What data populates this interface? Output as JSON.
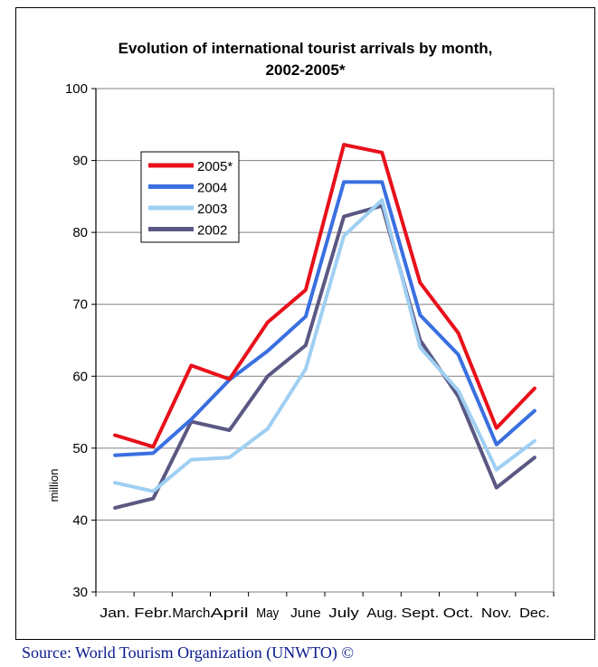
{
  "title_line1": "Evolution of international tourist arrivals by month,",
  "title_line2": "2002-2005*",
  "source": "Source: World Tourism Organization (UNWTO) ©",
  "chart_data": {
    "type": "line",
    "title": "Evolution of international tourist arrivals by month, 2002-2005*",
    "xlabel": "",
    "ylabel": "million",
    "ylim": [
      30,
      100
    ],
    "yticks": [
      30,
      40,
      50,
      60,
      70,
      80,
      90,
      100
    ],
    "grid": true,
    "legend_position": "top-left",
    "categories": [
      "Jan.",
      "Febr.",
      "March",
      "April",
      "May",
      "June",
      "July",
      "Aug.",
      "Sept.",
      "Oct.",
      "Nov.",
      "Dec."
    ],
    "series": [
      {
        "name": "2005*",
        "color": "#e8101a",
        "values": [
          51.8,
          50.2,
          61.5,
          59.6,
          67.5,
          72.0,
          92.2,
          91.1,
          73.0,
          66.0,
          52.8,
          58.3
        ]
      },
      {
        "name": "2004",
        "color": "#3a6fe0",
        "values": [
          49.0,
          49.3,
          54.0,
          59.5,
          63.5,
          68.3,
          87.0,
          87.0,
          68.5,
          63.0,
          50.5,
          55.2
        ]
      },
      {
        "name": "2003",
        "color": "#9fcff2",
        "values": [
          45.2,
          44.0,
          48.4,
          48.7,
          52.7,
          61.0,
          79.5,
          84.5,
          64.0,
          58.0,
          47.0,
          51.0
        ]
      },
      {
        "name": "2002",
        "color": "#5a5883",
        "values": [
          41.7,
          43.0,
          53.7,
          52.5,
          60.0,
          64.3,
          82.2,
          83.7,
          65.0,
          57.2,
          44.5,
          48.7
        ]
      }
    ]
  }
}
